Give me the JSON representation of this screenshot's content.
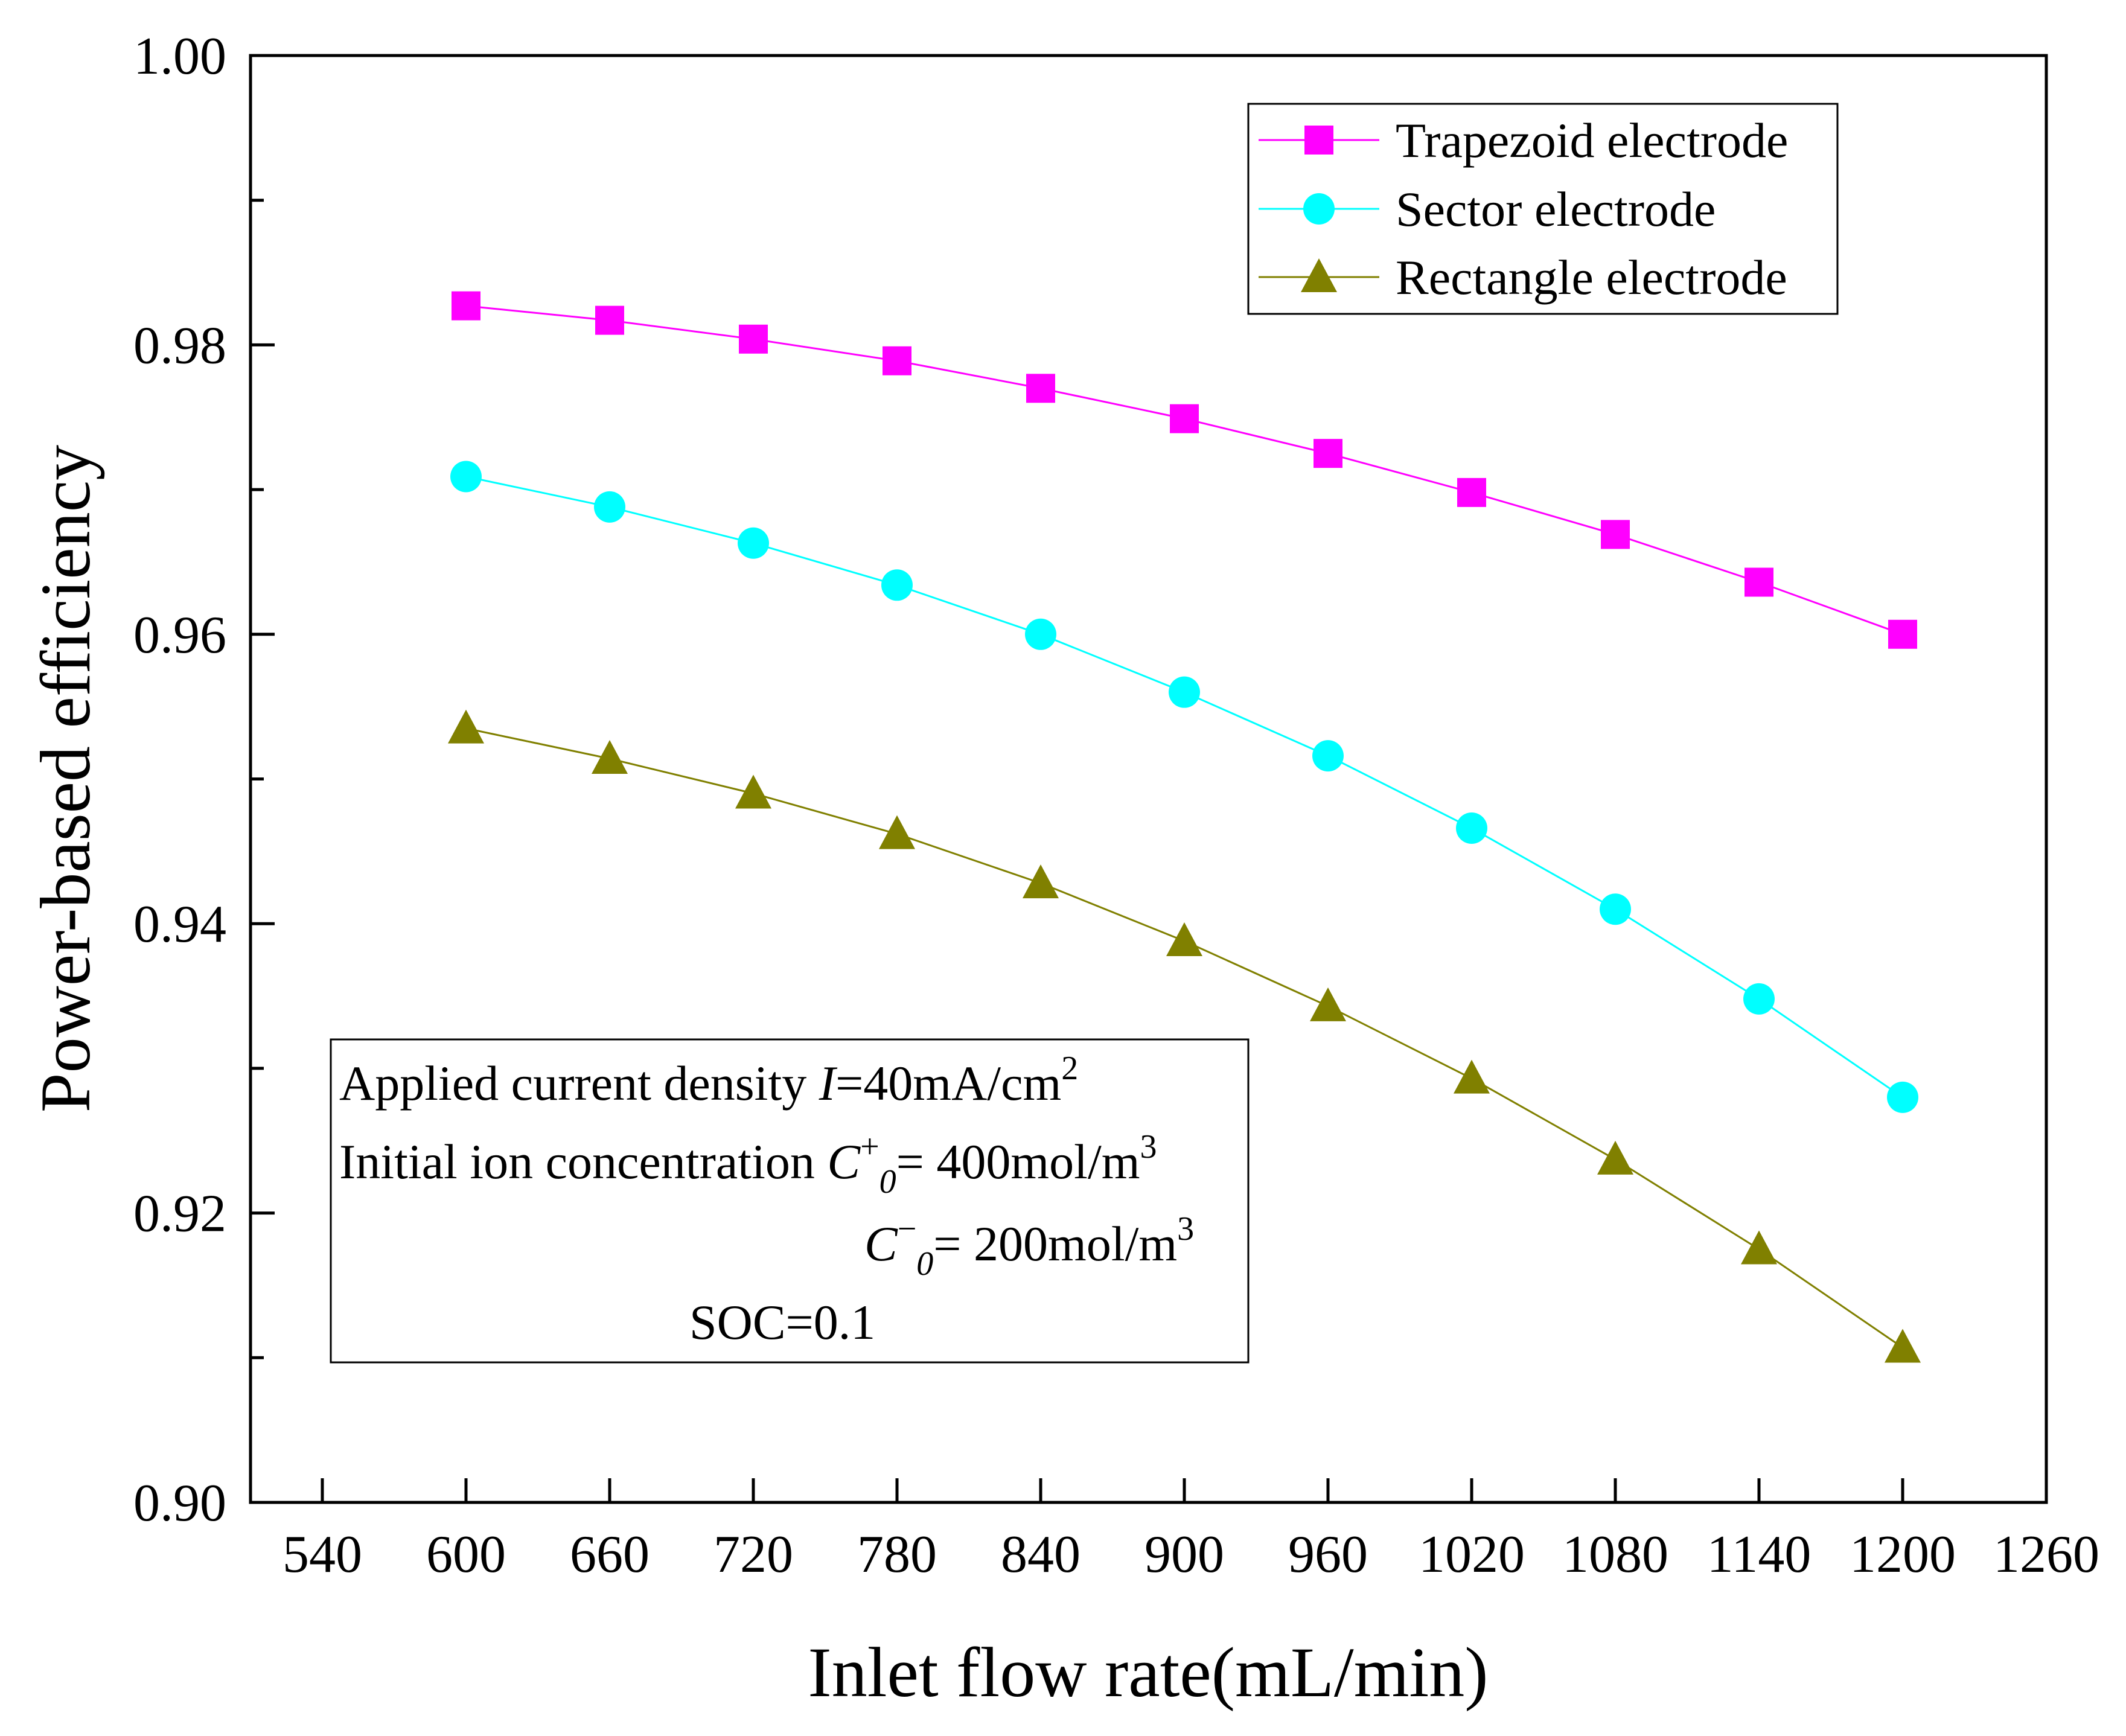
{
  "chart_data": {
    "type": "line",
    "xlabel": "Inlet flow rate(mL/min)",
    "ylabel": "Power-based efficiency",
    "xlim": [
      510,
      1260
    ],
    "ylim": [
      0.9,
      1.0
    ],
    "x_ticks": [
      540,
      600,
      660,
      720,
      780,
      840,
      900,
      960,
      1020,
      1080,
      1140,
      1200,
      1260
    ],
    "x_tick_labels": [
      "540",
      "600",
      "660",
      "720",
      "780",
      "840",
      "900",
      "960",
      "1020",
      "1080",
      "1140",
      "1200",
      "1260"
    ],
    "y_ticks": [
      0.9,
      0.92,
      0.94,
      0.96,
      0.98,
      1.0
    ],
    "y_tick_labels": [
      "0.90",
      "0.92",
      "0.94",
      "0.96",
      "0.98",
      "1.00"
    ],
    "y_minor_ticks": [
      0.91,
      0.93,
      0.95,
      0.97,
      0.99
    ],
    "grid": false,
    "legend_position": "top-right",
    "x": [
      600,
      660,
      720,
      780,
      840,
      900,
      960,
      1020,
      1080,
      1140,
      1200
    ],
    "series": [
      {
        "name": "Trapezoid electrode",
        "color": "#ff00ff",
        "marker": "square",
        "values": [
          0.9827,
          0.9817,
          0.9804,
          0.9789,
          0.977,
          0.9749,
          0.9725,
          0.9698,
          0.9669,
          0.9636,
          0.96
        ]
      },
      {
        "name": "Sector electrode",
        "color": "#00ffff",
        "marker": "circle",
        "values": [
          0.9709,
          0.9688,
          0.9663,
          0.9634,
          0.96,
          0.956,
          0.9516,
          0.9466,
          0.941,
          0.9348,
          0.928
        ]
      },
      {
        "name": "Rectangle electrode",
        "color": "#808000",
        "marker": "triangle",
        "values": [
          0.9535,
          0.9514,
          0.949,
          0.9462,
          0.9428,
          0.9388,
          0.9343,
          0.9293,
          0.9237,
          0.9175,
          0.9107
        ]
      }
    ],
    "annotation": {
      "line1_text": "Applied current density ",
      "line1_var": "I",
      "line1_value": "=40mA/cm",
      "line1_sup": "2",
      "line2_text": "Initial ion concentration ",
      "line2_var": "C",
      "line2_sup": "+",
      "line2_sub": "0",
      "line2_value": "= 400mol/m",
      "line2_unit_sup": "3",
      "line3_var": "C",
      "line3_sup": "−",
      "line3_sub": "0",
      "line3_value": "= 200mol/m",
      "line3_unit_sup": "3",
      "line4_text": "SOC=0.1"
    }
  }
}
